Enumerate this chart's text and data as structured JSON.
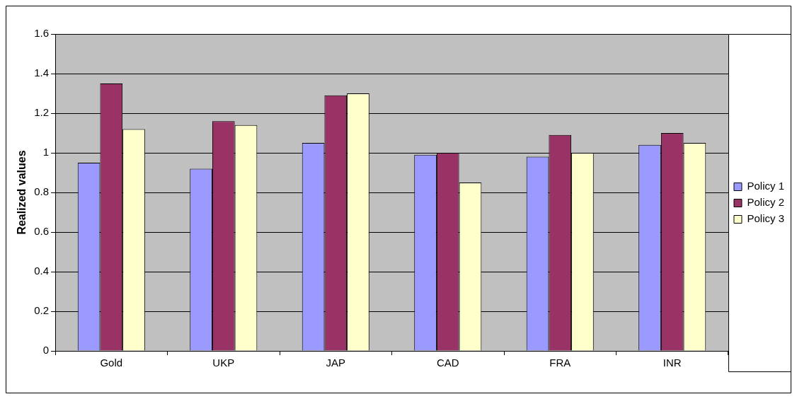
{
  "chart_data": {
    "type": "bar",
    "ylabel": "Realized values",
    "categories": [
      "Gold",
      "UKP",
      "JAP",
      "CAD",
      "FRA",
      "INR"
    ],
    "series": [
      {
        "name": "Policy 1",
        "color": "#9999ff",
        "values": [
          0.95,
          0.92,
          1.05,
          0.99,
          0.98,
          1.04
        ]
      },
      {
        "name": "Policy 2",
        "color": "#993366",
        "values": [
          1.35,
          1.16,
          1.29,
          1.0,
          1.09,
          1.1
        ]
      },
      {
        "name": "Policy 3",
        "color": "#ffffcc",
        "values": [
          1.12,
          1.14,
          1.3,
          0.85,
          1.0,
          1.05
        ]
      }
    ],
    "ylim": [
      0,
      1.6
    ],
    "yticks": [
      0,
      0.2,
      0.4,
      0.6,
      0.8,
      1,
      1.2,
      1.4,
      1.6
    ],
    "grid": "y",
    "legend": "right"
  }
}
